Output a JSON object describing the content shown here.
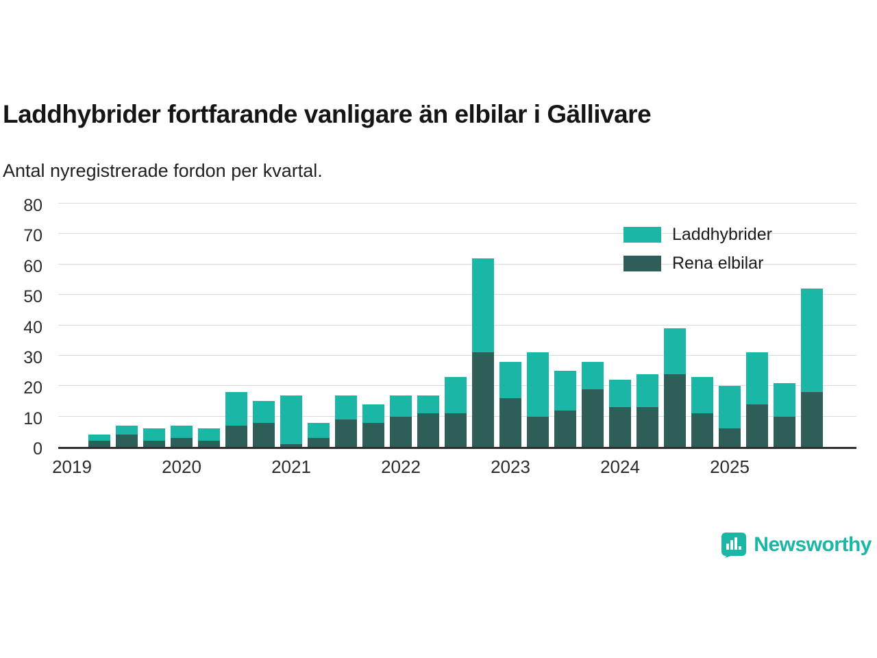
{
  "header": {
    "title": "Laddhybrider fortfarande vanligare än elbilar i Gällivare",
    "subtitle": "Antal nyregistrerade fordon per kvartal."
  },
  "legend": {
    "items": [
      {
        "label": "Laddhybrider",
        "color": "#1BB6A5"
      },
      {
        "label": "Rena elbilar",
        "color": "#2E5E58"
      }
    ],
    "position": "top-right"
  },
  "footer": {
    "brand": "Newsworthy",
    "logo_icon": "bar-chart-speech-bubble-icon",
    "brand_color": "#1BB6A5"
  },
  "colors": {
    "laddhybrider": "#1BB6A5",
    "rena_elbilar": "#2E5E58",
    "gridline": "#dcdcdc",
    "axis": "#2e2e2e",
    "background": "#ffffff"
  },
  "chart_data": {
    "type": "bar",
    "stacked": true,
    "stacking": "bottom-to-top",
    "title": "Laddhybrider fortfarande vanligare än elbilar i Gällivare",
    "subtitle": "Antal nyregistrerade fordon per kvartal.",
    "categories": [
      "2019 Q1",
      "2019 Q2",
      "2019 Q3",
      "2019 Q4",
      "2020 Q1",
      "2020 Q2",
      "2020 Q3",
      "2020 Q4",
      "2021 Q1",
      "2021 Q2",
      "2021 Q3",
      "2021 Q4",
      "2022 Q1",
      "2022 Q2",
      "2022 Q3",
      "2022 Q4",
      "2023 Q1",
      "2023 Q2",
      "2023 Q3",
      "2023 Q4",
      "2024 Q1",
      "2024 Q2",
      "2024 Q3",
      "2024 Q4",
      "2025 Q1",
      "2025 Q2",
      "2025 Q3",
      "2025 Q4"
    ],
    "series": [
      {
        "name": "Rena elbilar",
        "color": "#2E5E58",
        "values": [
          0,
          2,
          4,
          2,
          3,
          2,
          7,
          8,
          1,
          3,
          9,
          8,
          10,
          11,
          11,
          31,
          16,
          10,
          12,
          19,
          13,
          13,
          24,
          11,
          6,
          14,
          10,
          18
        ]
      },
      {
        "name": "Laddhybrider",
        "color": "#1BB6A5",
        "values": [
          0,
          2,
          3,
          4,
          4,
          4,
          11,
          7,
          16,
          5,
          8,
          6,
          7,
          6,
          12,
          31,
          12,
          21,
          13,
          9,
          9,
          11,
          15,
          12,
          14,
          17,
          11,
          34
        ]
      }
    ],
    "totals": [
      0,
      4,
      7,
      6,
      7,
      6,
      18,
      15,
      17,
      8,
      17,
      14,
      17,
      17,
      23,
      62,
      28,
      31,
      25,
      28,
      22,
      24,
      39,
      23,
      20,
      31,
      21,
      52
    ],
    "ylim": [
      0,
      80
    ],
    "yticks": [
      0,
      10,
      20,
      30,
      40,
      50,
      60,
      70,
      80
    ],
    "x_year_ticks": [
      {
        "label": "2019",
        "quarter_index": 0
      },
      {
        "label": "2020",
        "quarter_index": 4
      },
      {
        "label": "2021",
        "quarter_index": 8
      },
      {
        "label": "2022",
        "quarter_index": 12
      },
      {
        "label": "2023",
        "quarter_index": 16
      },
      {
        "label": "2024",
        "quarter_index": 20
      },
      {
        "label": "2025",
        "quarter_index": 24
      }
    ],
    "grid": "horizontal",
    "legend_position": "top-right"
  }
}
